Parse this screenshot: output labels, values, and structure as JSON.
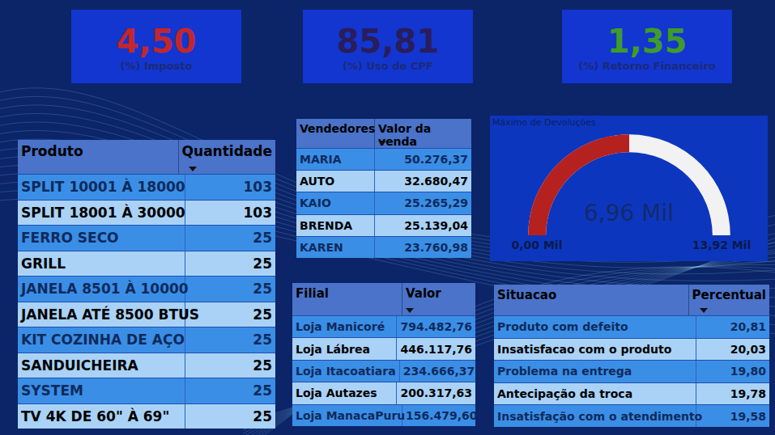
{
  "kpis": [
    {
      "value": "4,50",
      "label": "(%) Imposto",
      "color": "#c3262c"
    },
    {
      "value": "85,81",
      "label": "(%) Uso de CPF",
      "color": "#2a1d5c"
    },
    {
      "value": "1,35",
      "label": "(%) Retorno Financeiro",
      "color": "#3f9b2b"
    }
  ],
  "products": {
    "headers": [
      "Produto",
      "Quantidade"
    ],
    "rows": [
      [
        "SPLIT 10001 À 18000",
        "103"
      ],
      [
        "SPLIT 18001 À 30000",
        "103"
      ],
      [
        "FERRO SECO",
        "25"
      ],
      [
        "GRILL",
        "25"
      ],
      [
        "JANELA 8501 À 10000",
        "25"
      ],
      [
        "JANELA ATÉ 8500 BTUS",
        "25"
      ],
      [
        "KIT COZINHA DE AÇO",
        "25"
      ],
      [
        "SANDUICHEIRA",
        "25"
      ],
      [
        "SYSTEM",
        "25"
      ],
      [
        "TV 4K DE 60\" À 69\"",
        "25"
      ]
    ]
  },
  "sellers": {
    "headers": [
      "Vendedores",
      "Valor da venda"
    ],
    "rows": [
      [
        "MARIA",
        "50.276,37"
      ],
      [
        "AUTO",
        "32.680,47"
      ],
      [
        "KAIO",
        "25.265,29"
      ],
      [
        "BRENDA",
        "25.139,04"
      ],
      [
        "KAREN",
        "23.760,98"
      ]
    ]
  },
  "branches": {
    "headers": [
      "Filial",
      "Valor"
    ],
    "rows": [
      [
        "Loja Manicoré",
        "794.482,76"
      ],
      [
        "Loja Lábrea",
        "446.117,76"
      ],
      [
        "Loja Itacoatiara",
        "234.666,37"
      ],
      [
        "Loja Autazes",
        "200.317,63"
      ],
      [
        "Loja ManacaPuru",
        "156.479,60"
      ]
    ]
  },
  "situations": {
    "headers": [
      "Situacao",
      "Percentual"
    ],
    "rows": [
      [
        "Produto com defeito",
        "20,81"
      ],
      [
        "Insatisfacao com o produto",
        "20,03"
      ],
      [
        "Problema na entrega",
        "19,80"
      ],
      [
        "Antecipação da troca",
        "19,78"
      ],
      [
        "Insatisfação com o atendimento",
        "19,58"
      ]
    ]
  },
  "chart_data": {
    "type": "gauge",
    "title": "Máximo de Devoluções",
    "values": [
      6960
    ],
    "value_labels": [
      "6,96 Mil"
    ],
    "ylim": [
      0,
      13920
    ],
    "yticks": [
      {
        "value": 0,
        "label": "0,00 Mil"
      },
      {
        "value": 13920,
        "label": "13,92 Mil"
      }
    ],
    "colors": [
      "#b5211f",
      "#f2f2f2"
    ]
  }
}
